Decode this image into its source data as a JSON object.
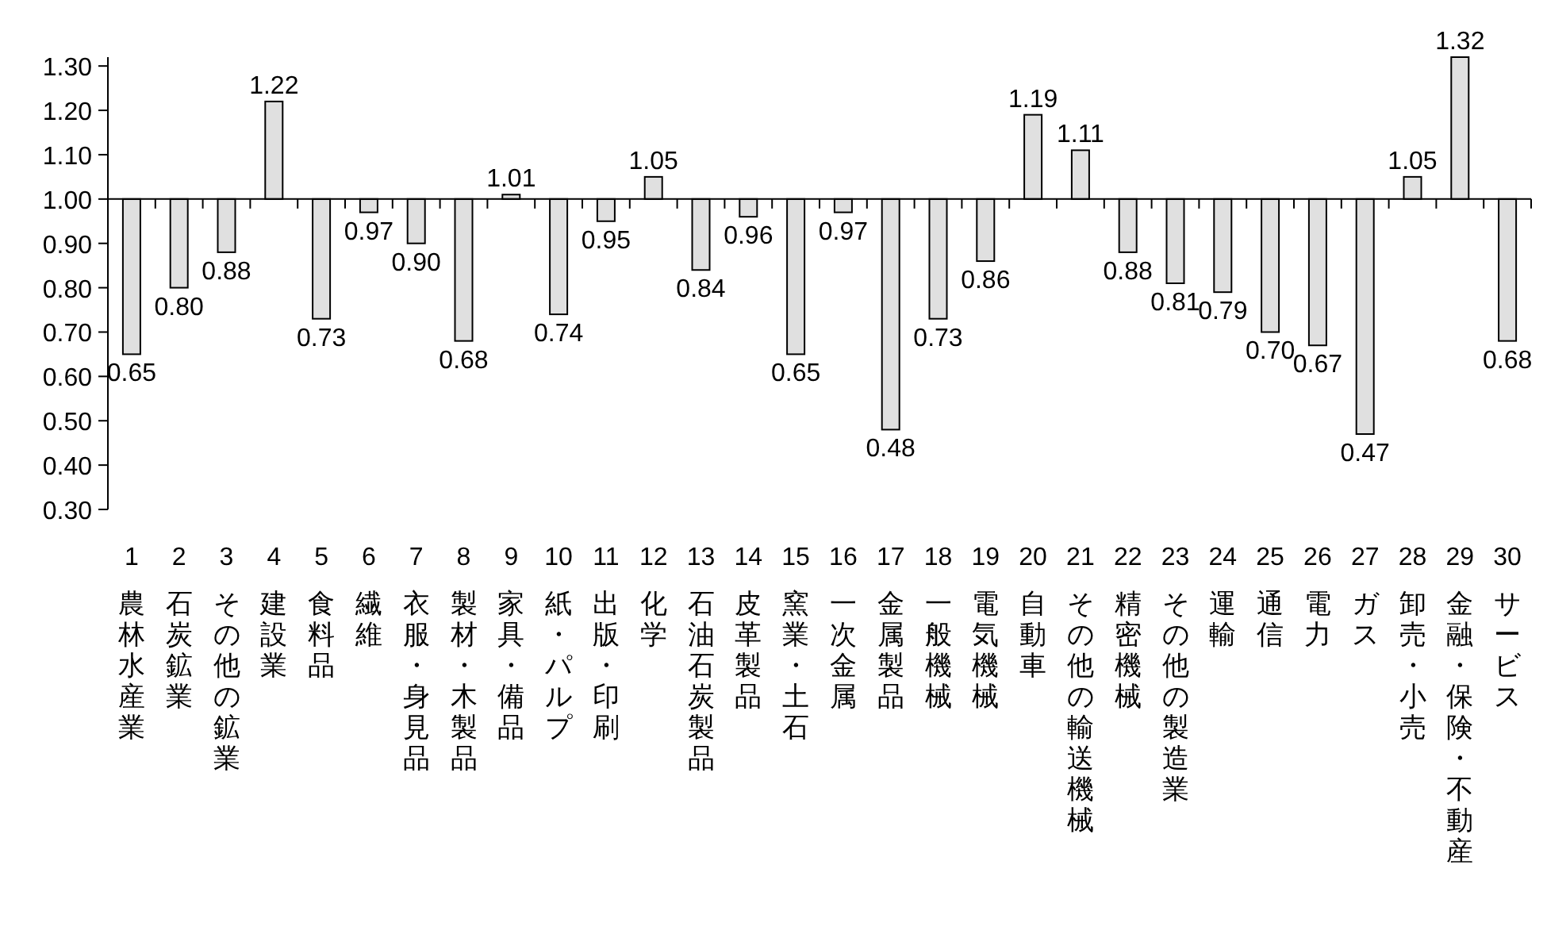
{
  "chart_data": {
    "type": "bar",
    "categories": [
      "1 農林水産業",
      "2 石炭鉱業",
      "3 その他の鉱業",
      "4 建設業",
      "5 食料品",
      "6 繊維",
      "7 衣服・身見品",
      "8 製材・木製品",
      "9 家具・備品",
      "10 紙・パルプ",
      "11 出版・印刷",
      "12 化学",
      "13 石油石炭製品",
      "14 皮革製品",
      "15 窯業・土石",
      "16 一次金属",
      "17 金属製品",
      "18 一般機械",
      "19 電気機械",
      "20 自動車",
      "21 その他の輸送機械",
      "22 精密機械",
      "23 その他の製造業",
      "24 運輸",
      "25 通信",
      "26 電力",
      "27 ガス",
      "28 卸売・小売",
      "29 金融・保険・不動産",
      "30 サービス"
    ],
    "base": [
      1,
      1,
      1,
      1,
      1,
      1,
      1,
      1,
      1,
      1,
      1,
      1,
      1,
      1,
      1,
      1,
      1,
      1,
      1,
      1,
      1,
      1,
      1,
      1,
      1,
      1,
      1,
      1,
      1,
      1
    ],
    "values": [
      -0.35,
      -0.2,
      -0.12,
      0.22,
      -0.27,
      -0.03,
      -0.1,
      -0.32,
      0.01,
      -0.26,
      -0.05,
      0.05,
      -0.16,
      -0.04,
      -0.35,
      -0.03,
      -0.52,
      -0.27,
      -0.14,
      0.19,
      0.11,
      -0.12,
      -0.19,
      -0.21,
      -0.3,
      -0.33,
      -0.53,
      0.05,
      0.32,
      -0.32
    ],
    "value_labels": [
      "0.65",
      "0.80",
      "0.88",
      "1.22",
      "0.73",
      "0.97",
      "0.90",
      "0.68",
      "1.01",
      "0.74",
      "0.95",
      "1.05",
      "0.84",
      "0.96",
      "0.65",
      "0.97",
      "0.48",
      "0.73",
      "0.86",
      "1.19",
      "1.11",
      "0.88",
      "0.81",
      "0.79",
      "0.70",
      "0.67",
      "0.47",
      "1.05",
      "1.32",
      "0.68"
    ],
    "color": "#e0e0e0",
    "ylim": [
      0.3,
      1.32
    ],
    "yticks": [
      {
        "value": 0.3,
        "label": "0.30"
      },
      {
        "value": 0.4,
        "label": "0.40"
      },
      {
        "value": 0.5,
        "label": "0.50"
      },
      {
        "value": 0.6,
        "label": "0.60"
      },
      {
        "value": 0.7,
        "label": "0.70"
      },
      {
        "value": 0.8,
        "label": "0.80"
      },
      {
        "value": 0.9,
        "label": "0.90"
      },
      {
        "value": 1.0,
        "label": "1.00"
      },
      {
        "value": 1.1,
        "label": "1.10"
      },
      {
        "value": 1.2,
        "label": "1.20"
      },
      {
        "value": 1.3,
        "label": "1.30"
      }
    ],
    "ref_lines": [
      {
        "axis": "y",
        "value": 1.0
      }
    ],
    "grid": false
  }
}
